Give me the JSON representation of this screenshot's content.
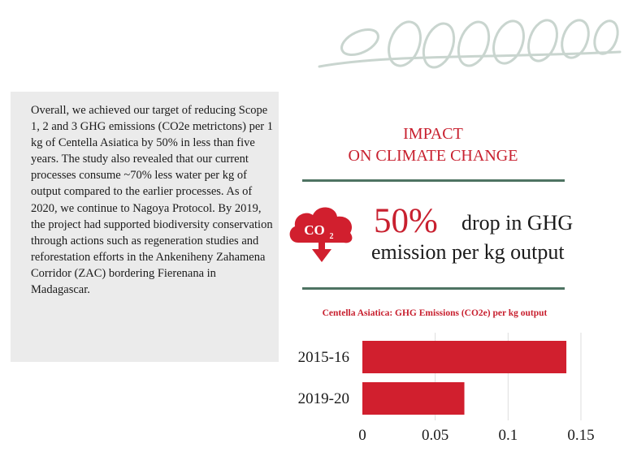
{
  "panel": {
    "text": "Overall, we achieved our target of reducing Scope 1, 2 and 3 GHG emissions (CO2e metrictons) per 1 kg of Centella Asiatica by 50% in less than five years. The study also revealed that our current processes consume ~70% less water per kg of output compared to the earlier processes. As of 2020, we continue to Nagoya Protocol. By 2019, the project had supported biodiversity conservation through actions such as regeneration studies and reforestation efforts in the Ankeniheny Zahamena Corridor (ZAC) bordering Fierenana in Madagascar."
  },
  "impact": {
    "title_line1": "IMPACT",
    "title_line2": "ON CLIMATE CHANGE"
  },
  "stat": {
    "percent": "50%",
    "text_line1": "drop in GHG",
    "text_line2": "emission per kg output",
    "icon": "co2-cloud-down-arrow-icon",
    "icon_label": "CO",
    "icon_subscript": "2"
  },
  "colors": {
    "accent_red": "#c8202f",
    "rule_green": "#4e7362",
    "leaf_grey": "#c9d5cf",
    "panel_grey": "#ebebeb"
  },
  "chart_data": {
    "type": "bar",
    "orientation": "horizontal",
    "title": "Centella Asiatica: GHG Emissions (CO2e) per kg output",
    "categories": [
      "2015-16",
      "2019-20"
    ],
    "values": [
      0.14,
      0.07
    ],
    "xlim": [
      0,
      0.15
    ],
    "xticks": [
      0,
      0.05,
      0.1,
      0.15
    ],
    "xtick_labels": [
      "0",
      "0.05",
      "0.1",
      "0.15"
    ],
    "bar_color": "#d11f2e",
    "grid": true
  }
}
